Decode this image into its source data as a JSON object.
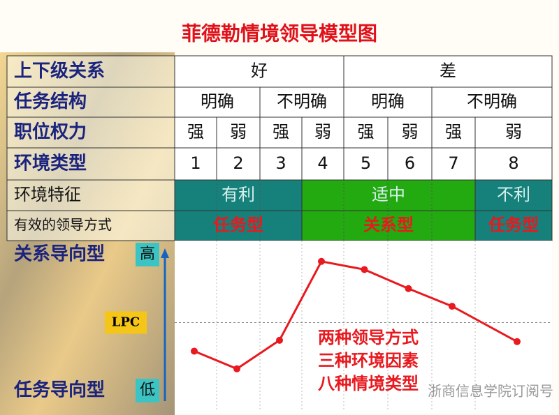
{
  "title": "菲德勒情境领导模型图",
  "table": {
    "rows": [
      {
        "label": "上下级关系",
        "cells": [
          "好",
          "差"
        ]
      },
      {
        "label": "任务结构",
        "cells": [
          "明确",
          "不明确",
          "明确",
          "不明确"
        ]
      },
      {
        "label": "职位权力",
        "cells": [
          "强",
          "弱",
          "强",
          "弱",
          "强",
          "弱",
          "强",
          "弱"
        ]
      },
      {
        "label": "环境类型",
        "cells": [
          "1",
          "2",
          "3",
          "4",
          "5",
          "6",
          "7",
          "8"
        ]
      },
      {
        "label": "环境特征",
        "cells": [
          "有利",
          "适中",
          "不利"
        ]
      },
      {
        "label": "有效的领导方式",
        "cells": [
          "任务型",
          "关系型",
          "任务型"
        ]
      }
    ]
  },
  "chart_data": {
    "type": "line",
    "y_top_label": "关系导向型",
    "y_bottom_label": "任务导向型",
    "categories": [
      "1",
      "2",
      "3",
      "4",
      "5",
      "6",
      "7",
      "8"
    ],
    "values": [
      29,
      16,
      37,
      95,
      89,
      75,
      62,
      36
    ],
    "color": "#e8191f",
    "ylim": [
      0,
      100
    ],
    "yticks": [
      {
        "value": 0,
        "label": "低"
      },
      {
        "value": 50,
        "label": "LPC"
      },
      {
        "value": 100,
        "label": "高"
      }
    ]
  },
  "annotations": [
    "两种领导方式",
    "三种环境因素",
    "八种情境类型"
  ],
  "watermark": "浙商信息学院订阅号"
}
